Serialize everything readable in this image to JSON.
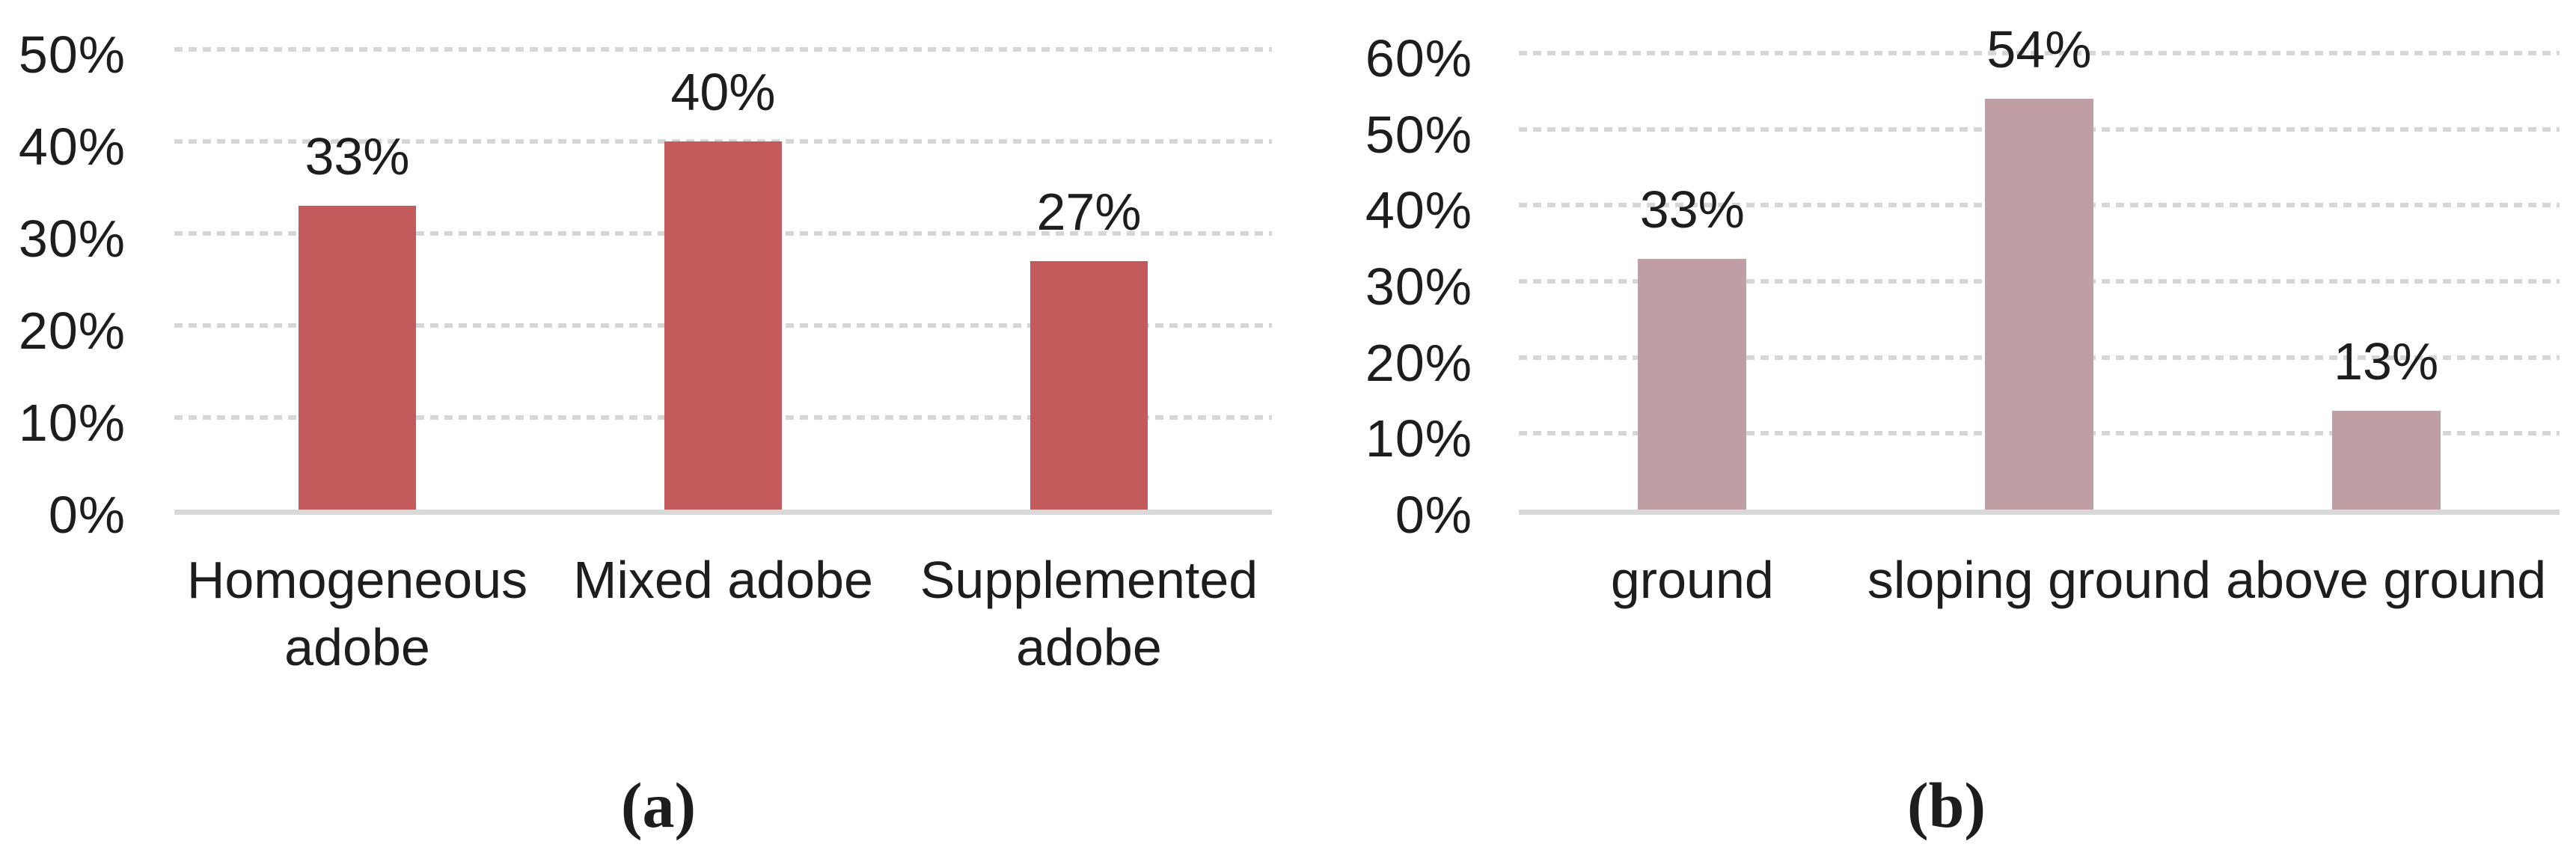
{
  "figure": {
    "background": "#ffffff",
    "text_color": "#1d1d1d",
    "gridline_color": "#D6D6D6",
    "axis_line_color": "#D9D9D9",
    "captions": {
      "a": "(a)",
      "b": "(b)"
    }
  },
  "chart_data": [
    {
      "type": "bar",
      "panel": "a",
      "caption": "(a)",
      "categories": [
        "Homogeneous adobe",
        "Mixed adobe",
        "Supplemented adobe"
      ],
      "values": [
        33,
        40,
        27
      ],
      "value_labels": [
        "33%",
        "40%",
        "27%"
      ],
      "y_ticks": [
        "0%",
        "10%",
        "20%",
        "30%",
        "40%",
        "50%"
      ],
      "ylim": [
        0,
        50
      ],
      "y_tick_step": 10,
      "xlabel": "",
      "ylabel": "",
      "title": "",
      "grid": "horizontal-dotted",
      "legend": "none",
      "bar_color": "#C35B5C"
    },
    {
      "type": "bar",
      "panel": "b",
      "caption": "(b)",
      "categories": [
        "ground",
        "sloping ground",
        "above ground"
      ],
      "values": [
        33,
        54,
        13
      ],
      "value_labels": [
        "33%",
        "54%",
        "13%"
      ],
      "y_ticks": [
        "0%",
        "10%",
        "20%",
        "30%",
        "40%",
        "50%",
        "60%"
      ],
      "ylim": [
        0,
        60
      ],
      "y_tick_step": 10,
      "xlabel": "",
      "ylabel": "",
      "title": "",
      "grid": "horizontal-dotted",
      "legend": "none",
      "bar_color": "#BF9FA3"
    }
  ]
}
